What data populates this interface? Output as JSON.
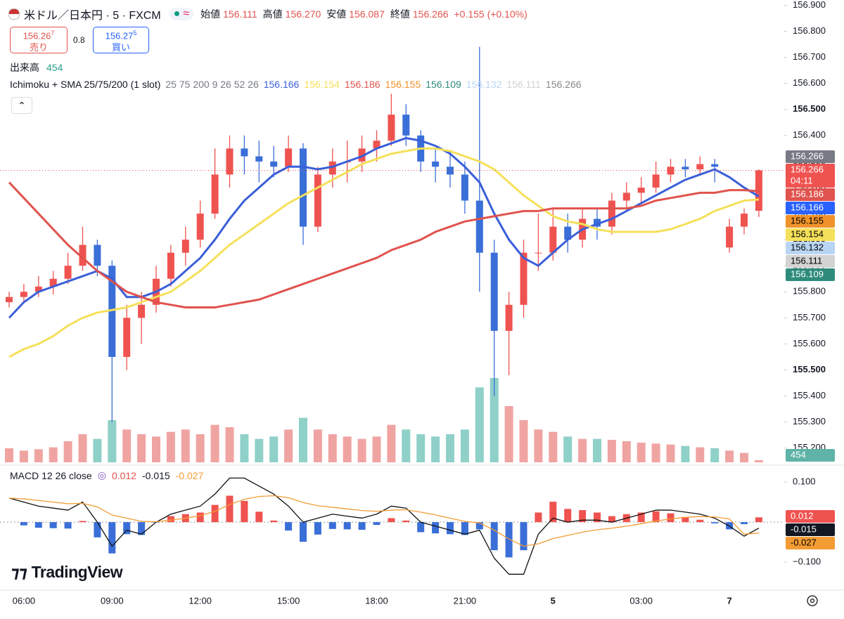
{
  "header": {
    "symbol": "米ドル／日本円 · 5 · FXCM",
    "ohlc": [
      {
        "label": "始値",
        "value": "156.111"
      },
      {
        "label": "高値",
        "value": "156.270"
      },
      {
        "label": "安値",
        "value": "156.087"
      },
      {
        "label": "終値",
        "value": "156.266"
      }
    ],
    "change": "+0.155 (+0.10%)",
    "sell": {
      "price": "156.26",
      "pip": "7",
      "label": "売り"
    },
    "spread": "0.8",
    "buy": {
      "price": "156.27",
      "pip": "5",
      "label": "買い"
    },
    "volume_label": "出来高",
    "countdown": "04:11",
    "logo": "TradingView"
  },
  "chart_data": [
    {
      "type": "candlestick",
      "categories": [
        null,
        "06:00",
        null,
        null,
        null,
        null,
        null,
        "09:00",
        null,
        null,
        null,
        null,
        null,
        "12:00",
        null,
        null,
        null,
        null,
        null,
        "15:00",
        null,
        null,
        null,
        null,
        null,
        "18:00",
        null,
        null,
        null,
        null,
        null,
        "21:00",
        null,
        null,
        null,
        null,
        null,
        "5",
        null,
        null,
        null,
        null,
        null,
        "03:00",
        null,
        null,
        null,
        null,
        null,
        "7",
        null,
        null
      ],
      "open": [
        155.76,
        155.78,
        155.8,
        155.82,
        155.85,
        155.9,
        155.98,
        155.9,
        155.55,
        155.7,
        155.75,
        155.85,
        155.95,
        156,
        156.1,
        156.25,
        156.35,
        156.32,
        156.3,
        156.28,
        156.35,
        156.05,
        156.25,
        156.3,
        156.3,
        156.35,
        156.38,
        156.48,
        156.4,
        156.3,
        156.28,
        156.25,
        156.15,
        155.95,
        155.65,
        155.75,
        155.95,
        155.95,
        156.05,
        156,
        156.08,
        156.05,
        156.15,
        156.18,
        156.2,
        156.25,
        156.28,
        156.27,
        156.29,
        155.97,
        156.05,
        156.111
      ],
      "high": [
        155.8,
        155.83,
        155.86,
        155.88,
        155.95,
        156.05,
        156,
        155.92,
        155.75,
        155.8,
        155.9,
        155.98,
        156.05,
        156.15,
        156.35,
        156.4,
        156.4,
        156.38,
        156.36,
        156.4,
        156.37,
        156.28,
        156.35,
        156.38,
        156.4,
        156.42,
        156.56,
        156.52,
        156.42,
        156.35,
        156.34,
        156.3,
        156.74,
        156,
        155.8,
        156,
        156.1,
        156.12,
        156.1,
        156.12,
        156.12,
        156.18,
        156.22,
        156.24,
        156.3,
        156.31,
        156.31,
        156.32,
        156.31,
        156.08,
        156.12,
        156.27
      ],
      "low": [
        155.74,
        155.76,
        155.78,
        155.79,
        155.83,
        155.88,
        155.86,
        155.3,
        155.5,
        155.6,
        155.72,
        155.82,
        155.9,
        155.97,
        156.08,
        156.2,
        156.25,
        156.22,
        156.24,
        156.26,
        155.98,
        156.03,
        156.2,
        156.22,
        156.26,
        156.3,
        156.36,
        156.36,
        156.26,
        156.22,
        156.2,
        156.1,
        155.8,
        155.4,
        155.48,
        155.7,
        155.88,
        155.92,
        155.95,
        155.97,
        156,
        156.02,
        156.12,
        156.14,
        156.18,
        156.22,
        156.24,
        156.25,
        156.22,
        155.95,
        156.02,
        156.087
      ],
      "close": [
        155.78,
        155.8,
        155.82,
        155.85,
        155.9,
        155.98,
        155.9,
        155.55,
        155.7,
        155.75,
        155.85,
        155.95,
        156,
        156.1,
        156.25,
        156.35,
        156.32,
        156.3,
        156.28,
        156.35,
        156.05,
        156.25,
        156.3,
        156.3,
        156.35,
        156.38,
        156.48,
        156.4,
        156.3,
        156.28,
        156.25,
        156.15,
        155.95,
        155.65,
        155.75,
        155.95,
        155.95,
        156.05,
        156,
        156.08,
        156.05,
        156.15,
        156.18,
        156.2,
        156.25,
        156.28,
        156.27,
        156.29,
        156.28,
        156.05,
        156.1,
        156.266
      ],
      "colors": {
        "up": "#ef5350",
        "down": "#3a6fd8",
        "volume_up": "#f0a4a2",
        "volume_down": "#8fd0c8"
      },
      "volume": [
        3000,
        2500,
        2800,
        3200,
        4500,
        6000,
        5000,
        9000,
        7000,
        6000,
        5500,
        6500,
        7000,
        6000,
        8000,
        7500,
        6000,
        5000,
        5500,
        7000,
        9500,
        7000,
        6000,
        5500,
        5000,
        5500,
        8000,
        7000,
        6000,
        5500,
        6000,
        7000,
        16000,
        18000,
        12000,
        9000,
        7000,
        6500,
        5500,
        5000,
        5000,
        4800,
        4500,
        4200,
        4000,
        3800,
        3500,
        3200,
        3000,
        2500,
        2000,
        454
      ],
      "series": [
        {
          "color": "#3a5fd9",
          "values": [
            155.7,
            155.76,
            155.8,
            155.82,
            155.84,
            155.86,
            155.88,
            155.85,
            155.78,
            155.78,
            155.8,
            155.83,
            155.88,
            155.93,
            156,
            156.08,
            156.15,
            156.2,
            156.25,
            156.28,
            156.28,
            156.27,
            156.28,
            156.3,
            156.32,
            156.35,
            156.37,
            156.39,
            156.38,
            156.36,
            156.33,
            156.28,
            156.22,
            156.1,
            156,
            155.93,
            155.9,
            155.95,
            156,
            156.04,
            156.06,
            156.08,
            156.11,
            156.14,
            156.17,
            156.2,
            156.23,
            156.25,
            156.27,
            156.24,
            156.2,
            156.166
          ]
        },
        {
          "color": "#f5e05a",
          "values": [
            155.55,
            155.58,
            155.6,
            155.63,
            155.67,
            155.7,
            155.72,
            155.73,
            155.74,
            155.76,
            155.78,
            155.8,
            155.84,
            155.88,
            155.93,
            155.98,
            156.02,
            156.06,
            156.1,
            156.14,
            156.17,
            156.2,
            156.23,
            156.26,
            156.29,
            156.31,
            156.33,
            156.34,
            156.35,
            156.35,
            156.34,
            156.32,
            156.3,
            156.27,
            156.22,
            156.17,
            156.13,
            156.09,
            156.07,
            156.06,
            156.04,
            156.03,
            156.03,
            156.03,
            156.03,
            156.04,
            156.06,
            156.08,
            156.11,
            156.13,
            156.15,
            156.154
          ]
        },
        {
          "color": "#e0534e",
          "values": [
            156.22,
            156.16,
            156.1,
            156.04,
            155.98,
            155.93,
            155.88,
            155.84,
            155.8,
            155.78,
            155.76,
            155.75,
            155.74,
            155.74,
            155.74,
            155.75,
            155.76,
            155.77,
            155.79,
            155.81,
            155.83,
            155.85,
            155.87,
            155.89,
            155.91,
            155.93,
            155.96,
            155.98,
            156,
            156.03,
            156.05,
            156.07,
            156.08,
            156.09,
            156.1,
            156.11,
            156.11,
            156.12,
            156.12,
            156.12,
            156.12,
            156.12,
            156.12,
            156.13,
            156.15,
            156.16,
            156.17,
            156.18,
            156.18,
            156.19,
            156.19,
            156.186
          ]
        }
      ],
      "indicator": {
        "title": "Ichimoku + SMA 25/75/200 (1 slot)",
        "params": "25 75 200 9 26 52 26"
      },
      "ichimoku": [
        {
          "value": 156.155,
          "color": "#f0932b"
        },
        {
          "value": 156.109,
          "color": "#2e8b7a"
        },
        {
          "value": 156.132,
          "color": "#b9d5f3"
        },
        {
          "value": 156.111,
          "color": "#d3d3d3"
        }
      ],
      "ylim": [
        155.14,
        156.92
      ],
      "yticks": [
        {
          "value": 156.9,
          "label": "156.900"
        },
        {
          "value": 156.8,
          "label": "156.800"
        },
        {
          "value": 156.7,
          "label": "156.700"
        },
        {
          "value": 156.6,
          "label": "156.600"
        },
        {
          "value": 156.5,
          "label": "156.500"
        },
        {
          "value": 156.4,
          "label": "156.400"
        },
        {
          "value": 156.3,
          "label": "156.300"
        },
        {
          "value": 156.2,
          "label": "156.200"
        },
        {
          "value": 156.1,
          "label": "156.100"
        },
        {
          "value": 156,
          "label": "156.000"
        },
        {
          "value": 155.9,
          "label": "155.900"
        },
        {
          "value": 155.8,
          "label": "155.800"
        },
        {
          "value": 155.7,
          "label": "155.700"
        },
        {
          "value": 155.6,
          "label": "155.600"
        },
        {
          "value": 155.5,
          "label": "155.500"
        },
        {
          "value": 155.4,
          "label": "155.400"
        },
        {
          "value": 155.3,
          "label": "155.300"
        },
        {
          "value": 155.2,
          "label": "155.200"
        }
      ],
      "grid": false
    },
    {
      "type": "macd",
      "title": "MACD 12 26 close",
      "histogram": [
        0,
        -0.008,
        -0.014,
        -0.015,
        -0.016,
        0.003,
        -0.038,
        -0.078,
        -0.03,
        -0.032,
        -0.001,
        0.015,
        0.02,
        0.024,
        0.043,
        0.066,
        0.053,
        0.026,
        0.004,
        -0.021,
        -0.049,
        -0.031,
        -0.017,
        -0.018,
        -0.019,
        -0.007,
        0.01,
        0.004,
        -0.025,
        -0.028,
        -0.03,
        -0.032,
        -0.018,
        -0.07,
        -0.088,
        -0.07,
        0.024,
        0.051,
        0.033,
        0.03,
        0.024,
        0.015,
        0.02,
        0.024,
        0.027,
        0.022,
        0.013,
        0.006,
        -0.003,
        -0.018,
        -0.005,
        0.012
      ],
      "histogram_colors": {
        "up": "#ef5350",
        "down": "#3a6fd8"
      },
      "macd": {
        "color": "#111111",
        "values": [
          0.06,
          0.05,
          0.04,
          0.035,
          0.03,
          0.05,
          0,
          -0.06,
          -0.02,
          -0.03,
          0,
          0.02,
          0.03,
          0.04,
          0.07,
          0.11,
          0.11,
          0.09,
          0.07,
          0.04,
          0,
          0.01,
          0.02,
          0.015,
          0.01,
          0.02,
          0.04,
          0.035,
          0,
          -0.01,
          -0.02,
          -0.03,
          -0.02,
          -0.09,
          -0.13,
          -0.13,
          -0.03,
          0.01,
          0,
          0.005,
          0.005,
          0,
          0.01,
          0.02,
          0.03,
          0.03,
          0.025,
          0.02,
          0.01,
          -0.01,
          -0.035,
          -0.015
        ]
      },
      "signal": {
        "color": "#f39c34",
        "values": [
          0.06,
          0.058,
          0.054,
          0.05,
          0.046,
          0.047,
          0.038,
          0.018,
          0.01,
          0.002,
          0.001,
          0.005,
          0.01,
          0.016,
          0.027,
          0.044,
          0.057,
          0.064,
          0.066,
          0.061,
          0.049,
          0.041,
          0.037,
          0.033,
          0.029,
          0.027,
          0.03,
          0.031,
          0.025,
          0.018,
          0.01,
          0.002,
          -0.002,
          -0.02,
          -0.042,
          -0.06,
          -0.054,
          -0.041,
          -0.033,
          -0.025,
          -0.019,
          -0.015,
          -0.01,
          -0.004,
          0.003,
          0.008,
          0.012,
          0.014,
          0.013,
          0.008,
          -0.03,
          -0.027
        ]
      },
      "ylim": [
        -0.161,
        0.137
      ],
      "yticks": [
        {
          "value": 0.1,
          "label": "0.100"
        },
        {
          "value": -0.1,
          "label": "−0.100"
        }
      ]
    }
  ]
}
